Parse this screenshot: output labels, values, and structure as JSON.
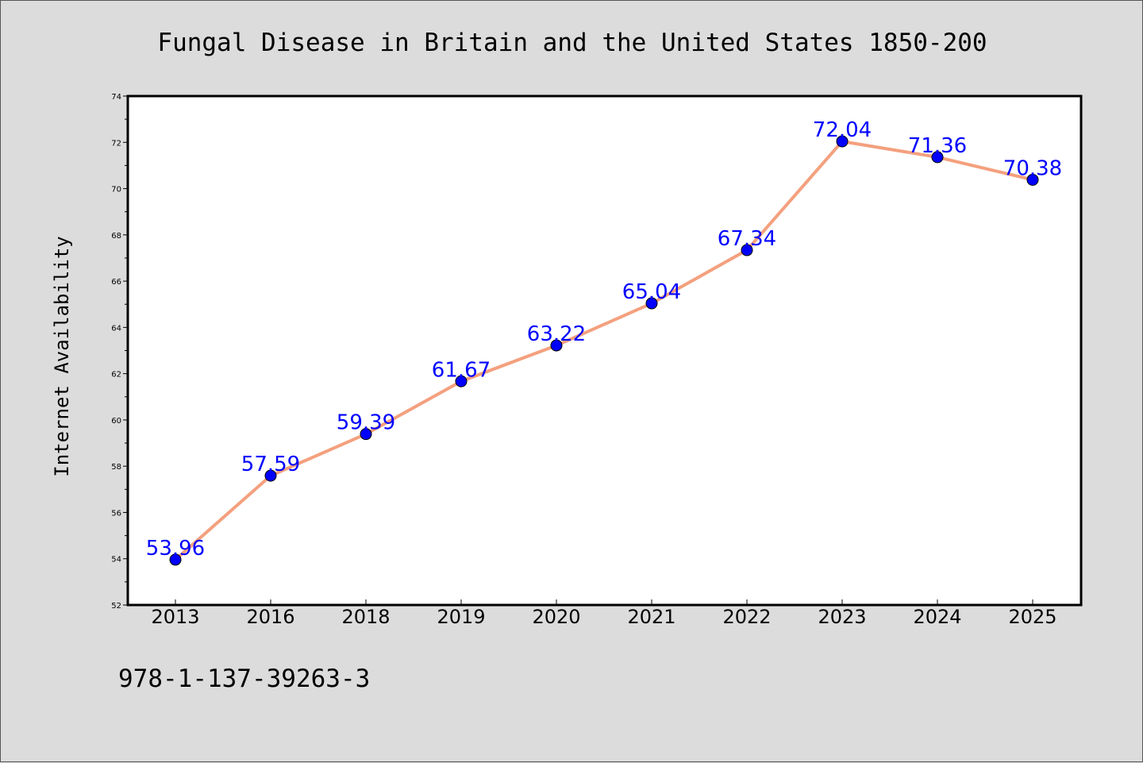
{
  "chart_data": {
    "type": "line",
    "title": "Fungal Disease in Britain and the United States 1850-200",
    "xlabel": "",
    "ylabel": "Internet Availability",
    "categories": [
      "2013",
      "2016",
      "2018",
      "2019",
      "2020",
      "2021",
      "2022",
      "2023",
      "2024",
      "2025"
    ],
    "series": [
      {
        "values": [
          53.96,
          57.59,
          59.39,
          61.67,
          63.22,
          65.04,
          67.34,
          72.04,
          71.36,
          70.38
        ],
        "labels": [
          "53.96",
          "57.59",
          "59.39",
          "61.67",
          "63.22",
          "65.04",
          "67.34",
          "72.04",
          "71.36",
          "70.38"
        ]
      }
    ],
    "ylim": [
      52,
      74
    ],
    "yticks": [
      52,
      54,
      56,
      58,
      60,
      62,
      64,
      66,
      68,
      70,
      72,
      74
    ],
    "ytick_labels": [
      "52",
      "54",
      "56",
      "58",
      "60",
      "62",
      "64",
      "66",
      "68",
      "70",
      "72",
      "74"
    ],
    "grid": false,
    "line_color": "#f4a07e",
    "marker_color": "#0000ff",
    "label_color": "#0000ff",
    "footer_text": "978-1-137-39263-3"
  }
}
